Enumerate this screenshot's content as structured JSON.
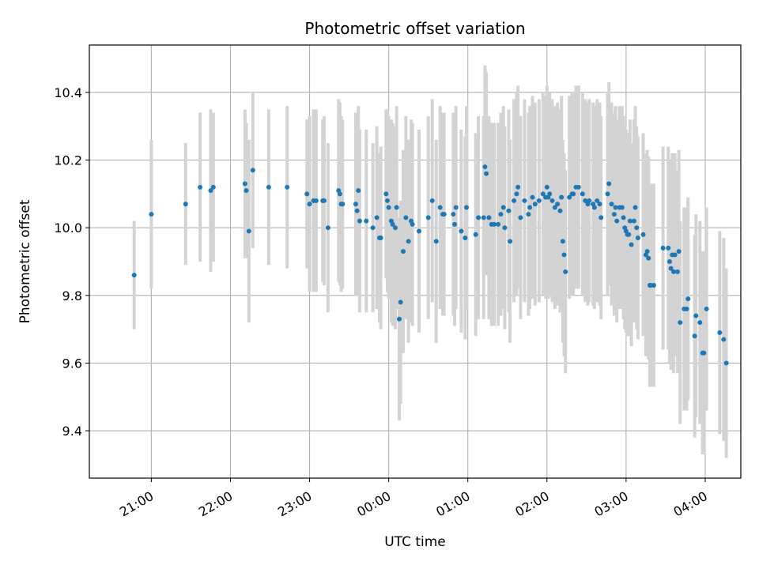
{
  "chart_data": {
    "type": "scatter",
    "title": "Photometric offset variation",
    "xlabel": "UTC time",
    "ylabel": "Photometric offset",
    "x_unit": "minutes",
    "xlim": [
      -47,
      447
    ],
    "ylim": [
      9.26,
      10.54
    ],
    "xticks": [
      {
        "label": "21:00",
        "value": 0
      },
      {
        "label": "22:00",
        "value": 60
      },
      {
        "label": "23:00",
        "value": 120
      },
      {
        "label": "00:00",
        "value": 180
      },
      {
        "label": "01:00",
        "value": 240
      },
      {
        "label": "02:00",
        "value": 300
      },
      {
        "label": "03:00",
        "value": 360
      },
      {
        "label": "04:00",
        "value": 420
      }
    ],
    "yticks": [
      9.4,
      9.6,
      9.8,
      10.0,
      10.2,
      10.4
    ],
    "grid": true,
    "colors": {
      "marker": "#1f77b4",
      "errorbar": "#d3d3d3",
      "grid": "#b0b0b0"
    },
    "series": [
      {
        "values": [
          [
            -13,
            9.86,
            0.16
          ],
          [
            0,
            10.04,
            0.22
          ],
          [
            26,
            10.07,
            0.18
          ],
          [
            37,
            10.12,
            0.22
          ],
          [
            45,
            10.11,
            0.24
          ],
          [
            47,
            10.12,
            0.22
          ],
          [
            71,
            10.13,
            0.22
          ],
          [
            72,
            10.11,
            0.2
          ],
          [
            74,
            9.99,
            0.27
          ],
          [
            77,
            10.17,
            0.23
          ],
          [
            89,
            10.12,
            0.23
          ],
          [
            103,
            10.12,
            0.24
          ],
          [
            118,
            10.1,
            0.22
          ],
          [
            120,
            10.07,
            0.26
          ],
          [
            123,
            10.08,
            0.27
          ],
          [
            125,
            10.08,
            0.27
          ],
          [
            130,
            10.08,
            0.24
          ],
          [
            131,
            10.08,
            0.25
          ],
          [
            134,
            10.0,
            0.25
          ],
          [
            142,
            10.11,
            0.27
          ],
          [
            143,
            10.1,
            0.27
          ],
          [
            144,
            10.07,
            0.26
          ],
          [
            145,
            10.07,
            0.25
          ],
          [
            155,
            10.07,
            0.27
          ],
          [
            156,
            10.05,
            0.25
          ],
          [
            157,
            10.11,
            0.25
          ],
          [
            158,
            10.02,
            0.27
          ],
          [
            163,
            10.02,
            0.27
          ],
          [
            168,
            10.0,
            0.25
          ],
          [
            171,
            10.03,
            0.27
          ],
          [
            173,
            9.97,
            0.25
          ],
          [
            174,
            9.97,
            0.27
          ],
          [
            178,
            10.1,
            0.25
          ],
          [
            179,
            10.08,
            0.27
          ],
          [
            180,
            10.06,
            0.27
          ],
          [
            182,
            10.02,
            0.3
          ],
          [
            183,
            10.01,
            0.3
          ],
          [
            185,
            10.0,
            0.3
          ],
          [
            186,
            10.06,
            0.3
          ],
          [
            188,
            9.73,
            0.3
          ],
          [
            189,
            9.78,
            0.3
          ],
          [
            191,
            9.93,
            0.3
          ],
          [
            193,
            10.03,
            0.3
          ],
          [
            195,
            9.96,
            0.3
          ],
          [
            197,
            10.02,
            0.3
          ],
          [
            198,
            10.01,
            0.3
          ],
          [
            203,
            9.99,
            0.3
          ],
          [
            210,
            10.03,
            0.3
          ],
          [
            213,
            10.08,
            0.3
          ],
          [
            216,
            9.96,
            0.3
          ],
          [
            219,
            10.06,
            0.3
          ],
          [
            221,
            10.04,
            0.3
          ],
          [
            222,
            10.04,
            0.3
          ],
          [
            229,
            10.04,
            0.3
          ],
          [
            230,
            10.01,
            0.3
          ],
          [
            231,
            10.06,
            0.3
          ],
          [
            235,
            9.99,
            0.3
          ],
          [
            238,
            9.97,
            0.3
          ],
          [
            239,
            10.06,
            0.3
          ],
          [
            246,
            9.98,
            0.3
          ],
          [
            248,
            10.03,
            0.3
          ],
          [
            252,
            10.03,
            0.3
          ],
          [
            253,
            10.18,
            0.3
          ],
          [
            254,
            10.16,
            0.3
          ],
          [
            256,
            10.03,
            0.3
          ],
          [
            258,
            10.01,
            0.3
          ],
          [
            260,
            10.01,
            0.3
          ],
          [
            263,
            10.01,
            0.3
          ],
          [
            265,
            10.04,
            0.3
          ],
          [
            267,
            10.06,
            0.3
          ],
          [
            268,
            10.0,
            0.3
          ],
          [
            271,
            10.05,
            0.3
          ],
          [
            272,
            9.96,
            0.3
          ],
          [
            275,
            10.08,
            0.3
          ],
          [
            277,
            10.1,
            0.3
          ],
          [
            278,
            10.12,
            0.3
          ],
          [
            280,
            10.03,
            0.3
          ],
          [
            283,
            10.08,
            0.3
          ],
          [
            286,
            10.04,
            0.3
          ],
          [
            287,
            10.06,
            0.3
          ],
          [
            289,
            10.09,
            0.3
          ],
          [
            291,
            10.07,
            0.3
          ],
          [
            294,
            10.08,
            0.3
          ],
          [
            297,
            10.1,
            0.3
          ],
          [
            299,
            10.09,
            0.3
          ],
          [
            300,
            10.12,
            0.3
          ],
          [
            301,
            10.09,
            0.3
          ],
          [
            302,
            10.1,
            0.3
          ],
          [
            304,
            10.08,
            0.3
          ],
          [
            306,
            10.06,
            0.3
          ],
          [
            308,
            10.07,
            0.3
          ],
          [
            310,
            10.05,
            0.3
          ],
          [
            311,
            10.09,
            0.3
          ],
          [
            312,
            9.96,
            0.3
          ],
          [
            313,
            9.92,
            0.3
          ],
          [
            314,
            9.87,
            0.3
          ],
          [
            317,
            10.09,
            0.3
          ],
          [
            319,
            10.1,
            0.3
          ],
          [
            320,
            10.1,
            0.3
          ],
          [
            322,
            10.12,
            0.3
          ],
          [
            324,
            10.12,
            0.3
          ],
          [
            327,
            10.1,
            0.3
          ],
          [
            329,
            10.08,
            0.3
          ],
          [
            331,
            10.07,
            0.3
          ],
          [
            332,
            10.08,
            0.3
          ],
          [
            335,
            10.07,
            0.3
          ],
          [
            336,
            10.06,
            0.3
          ],
          [
            338,
            10.08,
            0.3
          ],
          [
            340,
            10.07,
            0.3
          ],
          [
            341,
            10.03,
            0.3
          ],
          [
            346,
            10.1,
            0.3
          ],
          [
            347,
            10.13,
            0.3
          ],
          [
            349,
            10.07,
            0.3
          ],
          [
            351,
            10.04,
            0.3
          ],
          [
            352,
            10.06,
            0.3
          ],
          [
            353,
            10.02,
            0.3
          ],
          [
            355,
            10.06,
            0.3
          ],
          [
            357,
            10.06,
            0.3
          ],
          [
            358,
            10.03,
            0.3
          ],
          [
            359,
            10.0,
            0.3
          ],
          [
            360,
            9.99,
            0.3
          ],
          [
            361,
            9.98,
            0.3
          ],
          [
            362,
            9.98,
            0.3
          ],
          [
            363,
            10.02,
            0.3
          ],
          [
            364,
            9.95,
            0.3
          ],
          [
            366,
            10.02,
            0.3
          ],
          [
            367,
            10.06,
            0.3
          ],
          [
            368,
            10.0,
            0.3
          ],
          [
            369,
            9.97,
            0.3
          ],
          [
            373,
            9.98,
            0.3
          ],
          [
            375,
            9.92,
            0.3
          ],
          [
            376,
            9.93,
            0.3
          ],
          [
            377,
            9.91,
            0.3
          ],
          [
            378,
            9.83,
            0.3
          ],
          [
            379,
            9.83,
            0.3
          ],
          [
            381,
            9.83,
            0.3
          ],
          [
            388,
            9.94,
            0.3
          ],
          [
            392,
            9.94,
            0.3
          ],
          [
            393,
            9.9,
            0.3
          ],
          [
            394,
            9.88,
            0.3
          ],
          [
            395,
            9.92,
            0.3
          ],
          [
            396,
            9.87,
            0.3
          ],
          [
            397,
            9.92,
            0.3
          ],
          [
            399,
            9.87,
            0.3
          ],
          [
            400,
            9.93,
            0.3
          ],
          [
            401,
            9.72,
            0.3
          ],
          [
            404,
            9.76,
            0.3
          ],
          [
            406,
            9.76,
            0.3
          ],
          [
            407,
            9.79,
            0.3
          ],
          [
            412,
            9.68,
            0.3
          ],
          [
            413,
            9.74,
            0.3
          ],
          [
            416,
            9.72,
            0.3
          ],
          [
            418,
            9.63,
            0.3
          ],
          [
            419,
            9.63,
            0.3
          ],
          [
            421,
            9.76,
            0.3
          ],
          [
            431,
            9.69,
            0.3
          ],
          [
            434,
            9.67,
            0.3
          ],
          [
            436,
            9.6,
            0.28
          ]
        ]
      }
    ]
  }
}
